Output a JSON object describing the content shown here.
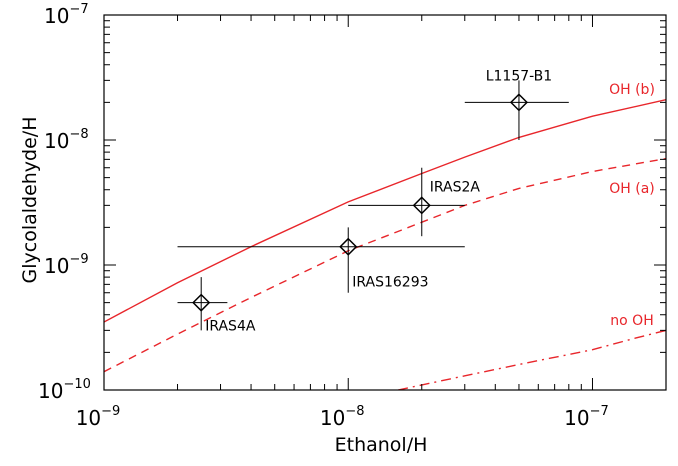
{
  "chart_data": {
    "type": "scatter",
    "title": "",
    "xlabel": "Ethanol/H",
    "ylabel": "Glycolaldehyde/H",
    "x_scale": "log",
    "y_scale": "log",
    "xlim": [
      1e-09,
      2e-07
    ],
    "ylim": [
      1e-10,
      1e-07
    ],
    "grid": false,
    "x_ticks": [
      {
        "value": 1e-09,
        "base": "10",
        "exp": "−9"
      },
      {
        "value": 1e-08,
        "base": "10",
        "exp": "−8"
      },
      {
        "value": 1e-07,
        "base": "10",
        "exp": "−7"
      }
    ],
    "y_ticks": [
      {
        "value": 1e-10,
        "base": "10",
        "exp": "−10"
      },
      {
        "value": 1e-09,
        "base": "10",
        "exp": "−9"
      },
      {
        "value": 1e-08,
        "base": "10",
        "exp": "−8"
      },
      {
        "value": 1e-07,
        "base": "10",
        "exp": "−7"
      }
    ],
    "points": [
      {
        "label": "IRAS4A",
        "x": 2.5e-09,
        "y": 5e-10,
        "xerr": [
          2e-09,
          3.2e-09
        ],
        "yerr": [
          3e-10,
          8e-10
        ]
      },
      {
        "label": "IRAS16293",
        "x": 1e-08,
        "y": 1.4e-09,
        "xerr": [
          2e-09,
          3e-08
        ],
        "yerr": [
          6e-10,
          2e-09
        ]
      },
      {
        "label": "IRAS2A",
        "x": 2e-08,
        "y": 3e-09,
        "xerr": [
          1e-08,
          3e-08
        ],
        "yerr": [
          1.7e-09,
          6e-09
        ]
      },
      {
        "label": "L1157-B1",
        "x": 5e-08,
        "y": 2e-08,
        "xerr": [
          3e-08,
          8e-08
        ],
        "yerr": [
          1e-08,
          3e-08
        ]
      }
    ],
    "series": [
      {
        "name": "OH (b)",
        "style": "solid",
        "color": "#e8262b",
        "x": [
          1e-09,
          2e-09,
          4e-09,
          1e-08,
          2e-08,
          3e-08,
          5e-08,
          1e-07,
          2e-07
        ],
        "y": [
          3.5e-10,
          7.2e-10,
          1.4e-09,
          3.2e-09,
          5.4e-09,
          7.3e-09,
          1.05e-08,
          1.55e-08,
          2.1e-08
        ]
      },
      {
        "name": "OH (a)",
        "style": "dashed",
        "color": "#e8262b",
        "x": [
          1e-09,
          2e-09,
          4e-09,
          1e-08,
          2e-08,
          3e-08,
          5e-08,
          1e-07,
          2e-07
        ],
        "y": [
          1.4e-10,
          2.8e-10,
          5.5e-10,
          1.3e-09,
          2.2e-09,
          3e-09,
          4.1e-09,
          5.6e-09,
          7.1e-09
        ]
      },
      {
        "name": "no OH",
        "style": "dashdot",
        "color": "#e8262b",
        "x": [
          1.6e-08,
          3e-08,
          5e-08,
          1e-07,
          1.5e-07,
          2e-07
        ],
        "y": [
          1e-10,
          1.3e-10,
          1.6e-10,
          2.1e-10,
          2.6e-10,
          3e-10
        ]
      }
    ]
  }
}
